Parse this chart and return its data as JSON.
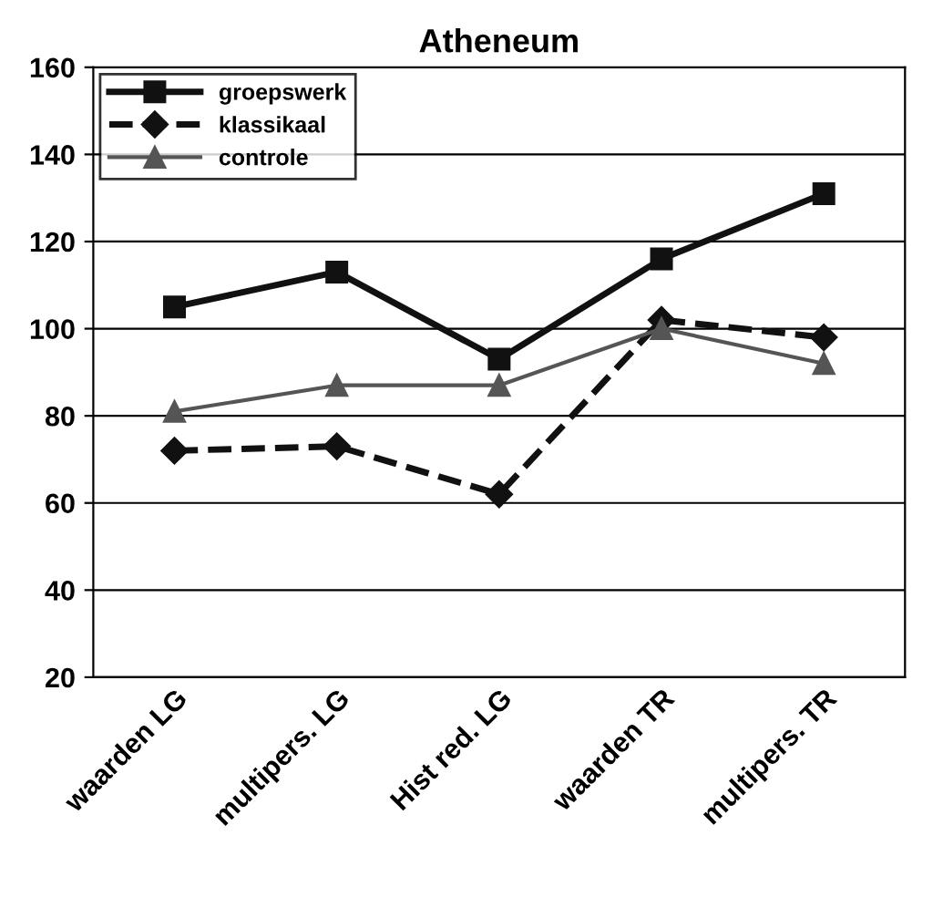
{
  "chart_data": {
    "type": "line",
    "title": "Atheneum",
    "categories": [
      "waarden LG",
      "multipers. LG",
      "Hist red. LG",
      "waarden TR",
      "multipers. TR"
    ],
    "series": [
      {
        "name": "groepswerk",
        "color": "#111111",
        "marker": "square",
        "line_style": "solid",
        "values": [
          105,
          113,
          93,
          116,
          131
        ]
      },
      {
        "name": "klassikaal",
        "color": "#111111",
        "marker": "diamond",
        "line_style": "dashed",
        "values": [
          72,
          73,
          62,
          102,
          98
        ]
      },
      {
        "name": "controle",
        "color": "#555555",
        "marker": "triangle",
        "line_style": "solid",
        "values": [
          81,
          87,
          87,
          100,
          92
        ]
      }
    ],
    "ylim": [
      20,
      160
    ],
    "yticks": [
      20,
      40,
      60,
      80,
      100,
      120,
      140,
      160
    ],
    "grid": "y",
    "legend": "top left"
  }
}
